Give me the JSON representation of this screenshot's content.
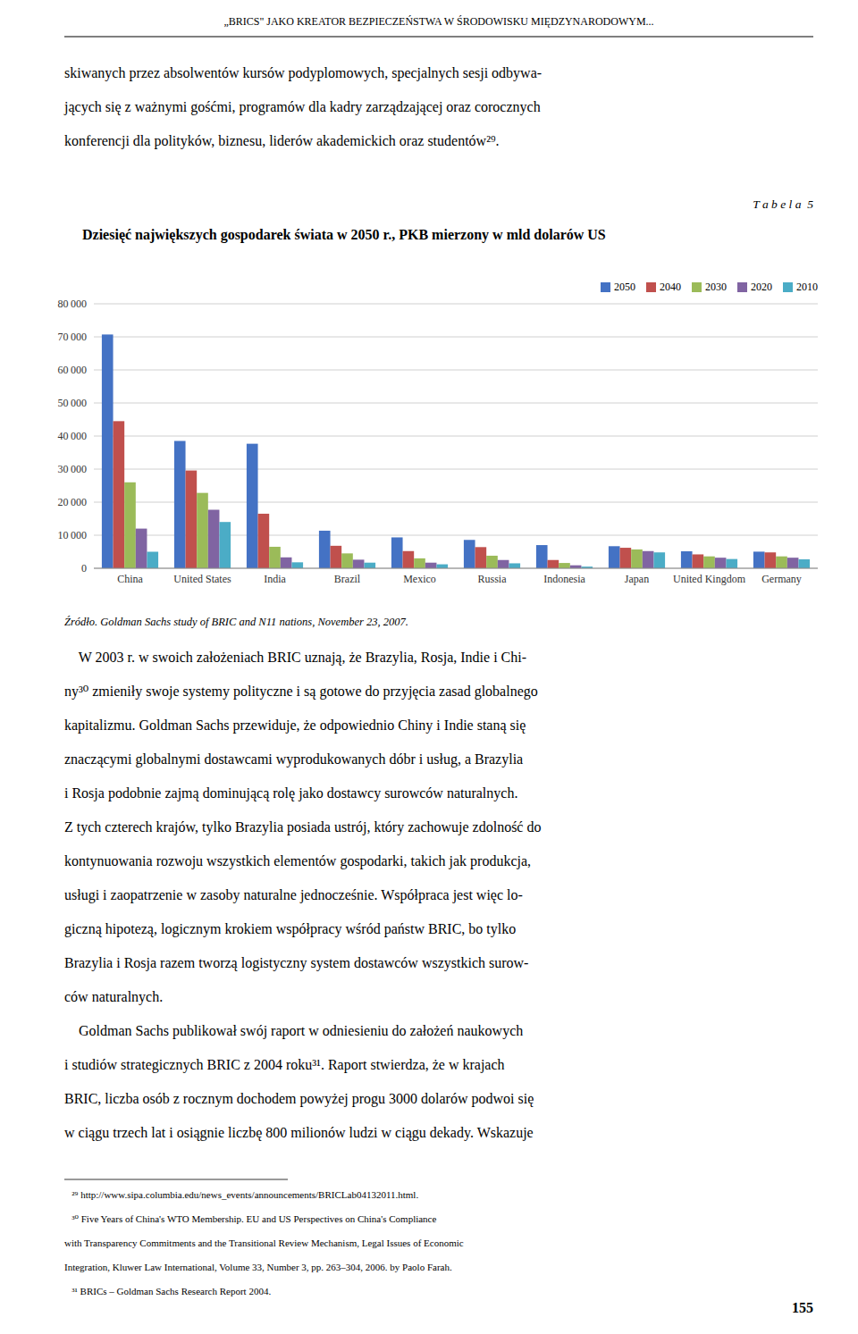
{
  "page": {
    "header": "„BRICS\" JAKO KREATOR BEZPIECZEŃSTWA W ŚRODOWISKU MIĘDZYNARODOWYM...",
    "body_before": [
      "skiwanych przez absolwentów kursów podyplomowych, specjalnych sesji odbywa-",
      "jących się z ważnymi gośćmi, programów dla kadry zarządzającej oraz corocznych",
      "konferencji dla polityków, biznesu, liderów akademickich oraz studentów²⁹."
    ],
    "table_label": "T a b e l a  5",
    "source": "Źródło. Goldman Sachs study of BRIC and N11 nations, November 23, 2007.",
    "body_after": [
      "    W 2003 r. w swoich założeniach BRIC uznają, że Brazylia, Rosja, Indie i Chi-",
      "ny³⁰ zmieniły swoje systemy polityczne i są gotowe do przyjęcia zasad globalnego",
      "kapitalizmu. Goldman Sachs przewiduje, że odpowiednio Chiny i Indie staną się",
      "znaczącymi globalnymi dostawcami wyprodukowanych dóbr i usług, a Brazylia",
      "i Rosja podobnie zajmą dominującą rolę jako dostawcy surowców naturalnych.",
      "Z tych czterech krajów, tylko Brazylia posiada ustrój, który zachowuje zdolność do",
      "kontynuowania rozwoju wszystkich elementów gospodarki, takich jak produkcja,",
      "usługi i zaopatrzenie w zasoby naturalne jednocześnie. Współpraca jest więc lo-",
      "giczną hipotezą, logicznym krokiem współpracy wśród państw BRIC, bo tylko",
      "Brazylia i Rosja razem tworzą logistyczny system dostawców wszystkich surow-",
      "ców naturalnych.",
      "    Goldman Sachs publikował swój raport w odniesieniu do założeń naukowych",
      "i studiów strategicznych BRIC z 2004 roku³¹. Raport stwierdza, że w krajach",
      "BRIC, liczba osób z rocznym dochodem powyżej progu 3000 dolarów podwoi się",
      "w ciągu trzech lat i osiągnie liczbę 800 milionów ludzi w ciągu dekady. Wskazuje"
    ],
    "footnotes": [
      "   ²⁹ http://www.sipa.columbia.edu/news_events/announcements/BRICLab04132011.html.",
      "   ³⁰ Five Years of China's WTO Membership. EU and US Perspectives on China's Compliance",
      "with Transparency Commitments and the Transitional Review Mechanism, Legal Issues of Economic",
      "Integration, Kluwer Law International, Volume 33, Number 3, pp. 263–304, 2006. by Paolo Farah.",
      "   ³¹ BRICs – Goldman Sachs Research Report 2004."
    ],
    "page_number": "155"
  },
  "chart_data": {
    "type": "bar",
    "title": "Dziesięć największych gospodarek świata w 2050 r., PKB mierzony w mld dolarów US",
    "categories": [
      "China",
      "United States",
      "India",
      "Brazil",
      "Mexico",
      "Russia",
      "Indonesia",
      "Japan",
      "United Kingdom",
      "Germany"
    ],
    "series": [
      {
        "name": "2050",
        "color": "#4472C4",
        "values": [
          70710,
          38514,
          37668,
          11366,
          9340,
          8580,
          7010,
          6677,
          5133,
          5024
        ]
      },
      {
        "name": "2040",
        "color": "#C0504D",
        "values": [
          44500,
          29575,
          16500,
          6800,
          5200,
          6400,
          2500,
          6200,
          4200,
          4800
        ]
      },
      {
        "name": "2030",
        "color": "#9BBB59",
        "values": [
          26000,
          22800,
          6500,
          4500,
          3000,
          3800,
          1600,
          5700,
          3600,
          3600
        ]
      },
      {
        "name": "2020",
        "color": "#8064A2",
        "values": [
          12000,
          17700,
          3300,
          2600,
          1700,
          2500,
          900,
          5200,
          3200,
          3200
        ]
      },
      {
        "name": "2010",
        "color": "#4BACC6",
        "values": [
          5000,
          14000,
          1800,
          1700,
          1200,
          1500,
          500,
          4800,
          2800,
          2700
        ]
      }
    ],
    "ylim": [
      0,
      80000
    ],
    "yticks": [
      0,
      {
        "value": 10000,
        "label": "10 000"
      },
      {
        "value": 20000,
        "label": "20 000"
      },
      {
        "value": 30000,
        "label": "30 000"
      },
      {
        "value": 40000,
        "label": "40 000"
      },
      {
        "value": 50000,
        "label": "50 000"
      },
      {
        "value": 60000,
        "label": "60 000"
      },
      {
        "value": 70000,
        "label": "70 000"
      },
      {
        "value": 80000,
        "label": "80 000"
      }
    ],
    "grid": true,
    "legend": "upper-right"
  }
}
